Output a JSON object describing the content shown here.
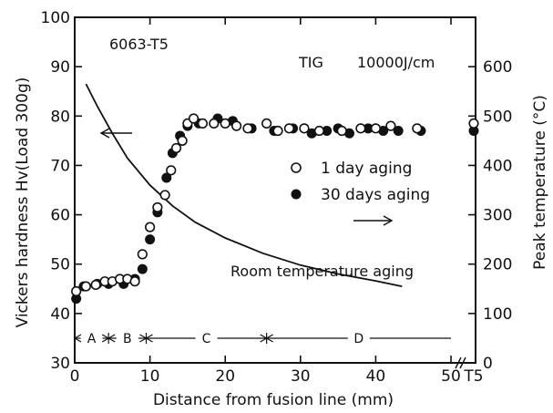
{
  "chart_data": {
    "type": "scatter",
    "title": "6063-T5",
    "method": "TIG",
    "heat_input": "10000J/cm",
    "xlabel": "Distance from fusion line (mm)",
    "ylabel_left": "Vickers hardness Hv(Load 300g)",
    "ylabel_right": "Peak temperature (°C)",
    "xlim": [
      0,
      50
    ],
    "ylim_left": [
      30,
      100
    ],
    "ylim_right": [
      0,
      700
    ],
    "x_ticks": [
      0,
      10,
      20,
      30,
      40,
      50
    ],
    "x_extra_tick": "T5",
    "y_left_ticks": [
      30,
      40,
      50,
      60,
      70,
      80,
      90,
      100
    ],
    "y_right_ticks": [
      0,
      100,
      200,
      300,
      400,
      500,
      600
    ],
    "annotation": "Room temperature aging",
    "series": [
      {
        "name": "1 day aging",
        "marker": "open-circle",
        "x": [
          0.2,
          1.5,
          2.8,
          4.0,
          5.0,
          6.0,
          7.0,
          8.0,
          9.0,
          10.0,
          11.0,
          12.0,
          12.8,
          13.5,
          14.3,
          15.0,
          15.8,
          17.0,
          18.5,
          20.0,
          21.5,
          23.0,
          25.5,
          27.0,
          28.5,
          30.5,
          32.5,
          35.5,
          38.0,
          40.0,
          42.0,
          45.5
        ],
        "y": [
          44.5,
          45.5,
          45.8,
          46.5,
          46.5,
          47.0,
          47.0,
          46.5,
          52.0,
          57.5,
          61.5,
          64.0,
          69.0,
          73.5,
          75.0,
          78.5,
          79.5,
          78.5,
          78.5,
          78.5,
          78.0,
          77.5,
          78.5,
          77.0,
          77.5,
          77.5,
          77.0,
          77.0,
          77.5,
          77.5,
          78.0,
          77.5
        ],
        "t5": 78.5
      },
      {
        "name": "30 days aging",
        "marker": "filled-circle",
        "x": [
          0.2,
          1.2,
          3.0,
          4.5,
          6.5,
          8.0,
          9.0,
          10.0,
          11.0,
          12.2,
          13.0,
          14.0,
          15.0,
          16.5,
          19.0,
          21.0,
          23.5,
          26.5,
          29.0,
          31.5,
          33.5,
          35.0,
          36.5,
          39.0,
          41.0,
          43.0,
          46.0
        ],
        "y": [
          43.0,
          45.5,
          46.0,
          46.0,
          46.0,
          47.0,
          49.0,
          55.0,
          60.5,
          67.5,
          72.5,
          76.0,
          78.0,
          78.5,
          79.5,
          79.0,
          77.5,
          77.0,
          77.5,
          76.5,
          77.0,
          77.5,
          76.5,
          77.5,
          77.0,
          77.0,
          77.0
        ],
        "t5": 77.0
      },
      {
        "name": "Peak temperature",
        "marker": "line",
        "axis": "right",
        "x": [
          1.5,
          3,
          5,
          7,
          10,
          13,
          16,
          20,
          25,
          30,
          35,
          40,
          43.5
        ],
        "y": [
          565,
          520,
          465,
          415,
          360,
          318,
          285,
          253,
          222,
          198,
          180,
          166,
          155
        ]
      }
    ],
    "zones": [
      {
        "label": "A",
        "from": 0,
        "to": 4.5
      },
      {
        "label": "B",
        "from": 4.5,
        "to": 9.5
      },
      {
        "label": "C",
        "from": 9.5,
        "to": 25.5
      },
      {
        "label": "D",
        "from": 25.5,
        "to": 50
      }
    ]
  }
}
